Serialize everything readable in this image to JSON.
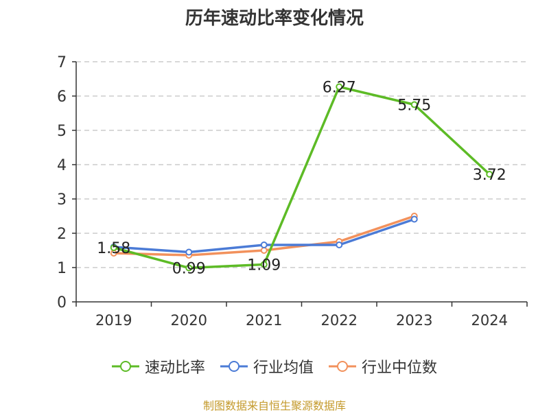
{
  "title": "历年速动比率变化情况",
  "source": "制图数据来自恒生聚源数据库",
  "chart_data": {
    "type": "line",
    "title": "历年速动比率变化情况",
    "categories": [
      "2019",
      "2020",
      "2021",
      "2022",
      "2023",
      "2024"
    ],
    "ylim": [
      0,
      7
    ],
    "yticks": [
      "0",
      "1",
      "2",
      "3",
      "4",
      "5",
      "6",
      "7"
    ],
    "grid": true,
    "legend_position": "bottom",
    "series": [
      {
        "name": "速动比率",
        "color": "#5dbb26",
        "values": [
          1.58,
          0.99,
          1.09,
          6.27,
          5.75,
          3.72
        ],
        "labels": [
          "1.58",
          "0.99",
          "1.09",
          "6.27",
          "5.75",
          "3.72"
        ]
      },
      {
        "name": "行业均值",
        "color": "#4b7bd6",
        "values": [
          1.6,
          1.45,
          1.66,
          1.66,
          2.41,
          null
        ]
      },
      {
        "name": "行业中位数",
        "color": "#f2915c",
        "values": [
          1.42,
          1.36,
          1.5,
          1.76,
          2.5,
          null
        ]
      }
    ]
  }
}
